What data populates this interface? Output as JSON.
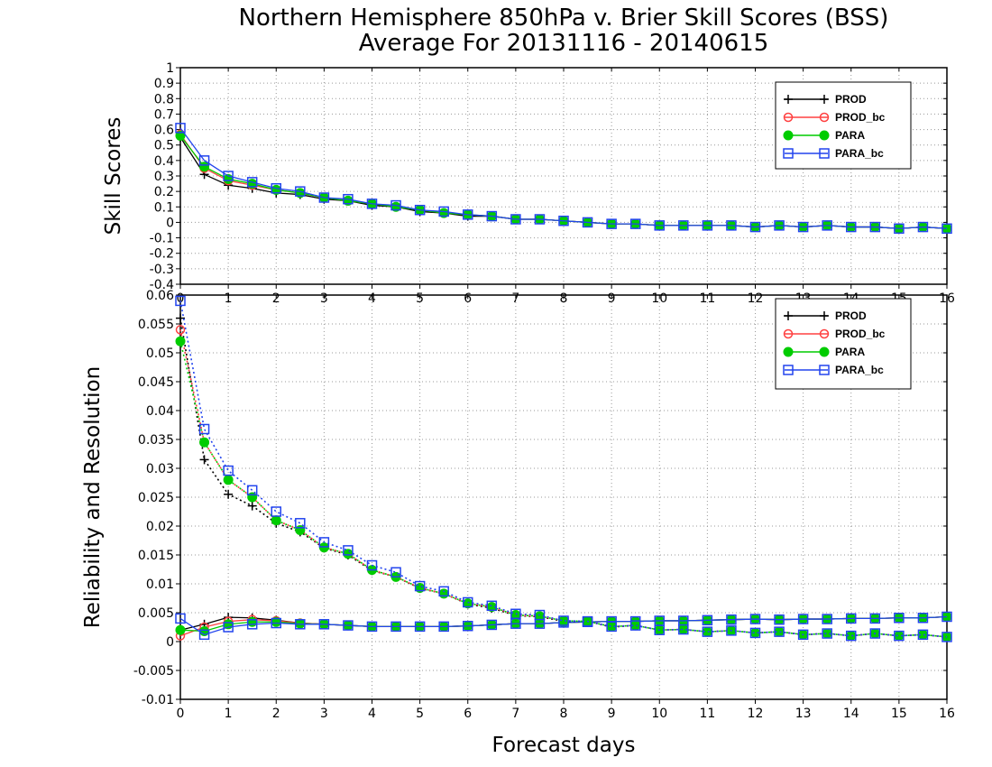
{
  "title_line1": "Northern Hemisphere 850hPa v. Brier Skill Scores (BSS)",
  "title_line2": "Average For 20131116 - 20140615",
  "chart_data": [
    {
      "type": "line",
      "ylabel": "Skill Scores",
      "xlabel": "",
      "xlim": [
        0,
        16
      ],
      "ylim": [
        -0.4,
        1
      ],
      "xticks": [
        "0",
        "1",
        "2",
        "3",
        "4",
        "5",
        "6",
        "7",
        "8",
        "9",
        "10",
        "11",
        "12",
        "13",
        "14",
        "15",
        "16"
      ],
      "yticks": [
        "-0.4",
        "-0.3",
        "-0.2",
        "-0.1",
        "0",
        "0.1",
        "0.2",
        "0.3",
        "0.4",
        "0.5",
        "0.6",
        "0.7",
        "0.8",
        "0.9",
        "1"
      ],
      "grid": true,
      "legend_position": "top-right",
      "x": [
        0,
        0.5,
        1,
        1.5,
        2,
        2.5,
        3,
        3.5,
        4,
        4.5,
        5,
        5.5,
        6,
        6.5,
        7,
        7.5,
        8,
        8.5,
        9,
        9.5,
        10,
        10.5,
        11,
        11.5,
        12,
        12.5,
        13,
        13.5,
        14,
        14.5,
        15,
        15.5,
        16
      ],
      "series": [
        {
          "name": "PROD",
          "color": "#000000",
          "marker": "plus",
          "values": [
            0.55,
            0.31,
            0.24,
            0.22,
            0.19,
            0.18,
            0.15,
            0.14,
            0.11,
            0.1,
            0.07,
            0.06,
            0.04,
            0.04,
            0.02,
            0.02,
            0.01,
            0.0,
            -0.01,
            -0.01,
            -0.02,
            -0.02,
            -0.02,
            -0.02,
            -0.03,
            -0.02,
            -0.03,
            -0.02,
            -0.03,
            -0.03,
            -0.04,
            -0.03,
            -0.04
          ]
        },
        {
          "name": "PROD_bc",
          "color": "#ff4040",
          "marker": "circle",
          "values": [
            0.57,
            0.35,
            0.27,
            0.24,
            0.21,
            0.19,
            0.16,
            0.14,
            0.12,
            0.1,
            0.08,
            0.06,
            0.05,
            0.04,
            0.02,
            0.02,
            0.01,
            0.0,
            -0.01,
            -0.01,
            -0.02,
            -0.02,
            -0.02,
            -0.02,
            -0.03,
            -0.02,
            -0.03,
            -0.02,
            -0.03,
            -0.03,
            -0.04,
            -0.03,
            -0.04
          ]
        },
        {
          "name": "PARA",
          "color": "#00cc00",
          "marker": "dot",
          "values": [
            0.56,
            0.36,
            0.28,
            0.25,
            0.21,
            0.19,
            0.16,
            0.14,
            0.12,
            0.1,
            0.08,
            0.06,
            0.05,
            0.04,
            0.02,
            0.02,
            0.01,
            0.0,
            -0.01,
            -0.01,
            -0.02,
            -0.02,
            -0.02,
            -0.02,
            -0.03,
            -0.02,
            -0.03,
            -0.02,
            -0.03,
            -0.03,
            -0.04,
            -0.03,
            -0.04
          ]
        },
        {
          "name": "PARA_bc",
          "color": "#2244ee",
          "marker": "square",
          "values": [
            0.61,
            0.4,
            0.3,
            0.26,
            0.22,
            0.2,
            0.16,
            0.15,
            0.12,
            0.11,
            0.08,
            0.07,
            0.05,
            0.04,
            0.02,
            0.02,
            0.01,
            0.0,
            -0.01,
            -0.01,
            -0.02,
            -0.02,
            -0.02,
            -0.02,
            -0.03,
            -0.02,
            -0.03,
            -0.02,
            -0.03,
            -0.03,
            -0.04,
            -0.03,
            -0.04
          ]
        }
      ]
    },
    {
      "type": "line",
      "ylabel": "Reliability and Resolution",
      "xlabel": "Forecast days",
      "xlim": [
        0,
        16
      ],
      "ylim": [
        -0.01,
        0.06
      ],
      "xticks": [
        "0",
        "1",
        "2",
        "3",
        "4",
        "5",
        "6",
        "7",
        "8",
        "9",
        "10",
        "11",
        "12",
        "13",
        "14",
        "15",
        "16"
      ],
      "yticks": [
        "-0.01",
        "-0.005",
        "0",
        "0.005",
        "0.01",
        "0.015",
        "0.02",
        "0.025",
        "0.03",
        "0.035",
        "0.04",
        "0.045",
        "0.05",
        "0.055",
        "0.06"
      ],
      "grid": true,
      "legend_position": "top-right",
      "x": [
        0,
        0.5,
        1,
        1.5,
        2,
        2.5,
        3,
        3.5,
        4,
        4.5,
        5,
        5.5,
        6,
        6.5,
        7,
        7.5,
        8,
        8.5,
        9,
        9.5,
        10,
        10.5,
        11,
        11.5,
        12,
        12.5,
        13,
        13.5,
        14,
        14.5,
        15,
        15.5,
        16
      ],
      "series": [
        {
          "name": "PROD",
          "color": "#000000",
          "marker": "plus",
          "component": "reliability",
          "values": [
            0.002,
            0.003,
            0.0042,
            0.0041,
            0.0037,
            0.0032,
            0.003,
            0.0028,
            0.0026,
            0.0026,
            0.0026,
            0.0026,
            0.0027,
            0.0029,
            0.0031,
            0.0031,
            0.0033,
            0.0034,
            0.0035,
            0.0035,
            0.0036,
            0.0036,
            0.0037,
            0.0038,
            0.0039,
            0.0038,
            0.0039,
            0.0039,
            0.004,
            0.004,
            0.0041,
            0.0041,
            0.0043
          ]
        },
        {
          "name": "PROD_bc",
          "color": "#ff4040",
          "marker": "circle",
          "component": "reliability",
          "values": [
            0.001,
            0.0025,
            0.0035,
            0.0038,
            0.0036,
            0.0032,
            0.003,
            0.0028,
            0.0026,
            0.0026,
            0.0026,
            0.0026,
            0.0027,
            0.0029,
            0.0031,
            0.0031,
            0.0033,
            0.0034,
            0.0035,
            0.0035,
            0.0036,
            0.0036,
            0.0037,
            0.0038,
            0.0039,
            0.0038,
            0.0039,
            0.0039,
            0.004,
            0.004,
            0.0041,
            0.0041,
            0.0043
          ]
        },
        {
          "name": "PARA",
          "color": "#00cc00",
          "marker": "dot",
          "component": "reliability",
          "values": [
            0.002,
            0.0018,
            0.003,
            0.0034,
            0.0034,
            0.0031,
            0.003,
            0.0028,
            0.0026,
            0.0026,
            0.0026,
            0.0026,
            0.0027,
            0.0029,
            0.0031,
            0.0031,
            0.0033,
            0.0034,
            0.0035,
            0.0035,
            0.0036,
            0.0036,
            0.0037,
            0.0038,
            0.0039,
            0.0038,
            0.0039,
            0.0039,
            0.004,
            0.004,
            0.0041,
            0.0041,
            0.0043
          ]
        },
        {
          "name": "PARA_bc",
          "color": "#2244ee",
          "marker": "square",
          "component": "reliability",
          "values": [
            0.004,
            0.0012,
            0.0025,
            0.003,
            0.0032,
            0.003,
            0.003,
            0.0028,
            0.0026,
            0.0026,
            0.0026,
            0.0026,
            0.0027,
            0.0029,
            0.0031,
            0.0031,
            0.0033,
            0.0034,
            0.0035,
            0.0035,
            0.0036,
            0.0036,
            0.0037,
            0.0038,
            0.0039,
            0.0038,
            0.0039,
            0.0039,
            0.004,
            0.004,
            0.0041,
            0.0041,
            0.0043
          ]
        },
        {
          "name": "PROD",
          "color": "#000000",
          "marker": "plus",
          "component": "resolution",
          "values": [
            0.056,
            0.0315,
            0.0255,
            0.0235,
            0.0205,
            0.019,
            0.0162,
            0.015,
            0.0123,
            0.0112,
            0.0092,
            0.0083,
            0.0065,
            0.0058,
            0.0045,
            0.0043,
            0.0035,
            0.0035,
            0.0025,
            0.0028,
            0.002,
            0.0021,
            0.0017,
            0.0019,
            0.0015,
            0.0017,
            0.0012,
            0.0014,
            0.001,
            0.0014,
            0.001,
            0.0012,
            0.0008
          ]
        },
        {
          "name": "PROD_bc",
          "color": "#ff4040",
          "marker": "circle",
          "component": "resolution",
          "values": [
            0.054,
            0.0345,
            0.028,
            0.025,
            0.021,
            0.0193,
            0.0163,
            0.0152,
            0.0124,
            0.0112,
            0.0093,
            0.0083,
            0.0066,
            0.006,
            0.0046,
            0.0044,
            0.0036,
            0.0035,
            0.0026,
            0.0028,
            0.002,
            0.0021,
            0.0017,
            0.0019,
            0.0015,
            0.0017,
            0.0012,
            0.0014,
            0.001,
            0.0014,
            0.001,
            0.0012,
            0.0008
          ]
        },
        {
          "name": "PARA",
          "color": "#00cc00",
          "marker": "dot",
          "component": "resolution",
          "values": [
            0.052,
            0.0345,
            0.028,
            0.025,
            0.021,
            0.0193,
            0.0163,
            0.0152,
            0.0124,
            0.0112,
            0.0093,
            0.0083,
            0.0066,
            0.006,
            0.0046,
            0.0044,
            0.0036,
            0.0035,
            0.0026,
            0.0028,
            0.002,
            0.0021,
            0.0017,
            0.0019,
            0.0015,
            0.0017,
            0.0012,
            0.0014,
            0.001,
            0.0014,
            0.001,
            0.0012,
            0.0008
          ]
        },
        {
          "name": "PARA_bc",
          "color": "#2244ee",
          "marker": "square",
          "component": "resolution",
          "values": [
            0.059,
            0.0368,
            0.0296,
            0.0262,
            0.0225,
            0.0205,
            0.0172,
            0.0158,
            0.0132,
            0.012,
            0.0096,
            0.0087,
            0.0068,
            0.0062,
            0.0048,
            0.0046,
            0.0036,
            0.0035,
            0.0026,
            0.0028,
            0.002,
            0.0021,
            0.0017,
            0.0019,
            0.0015,
            0.0017,
            0.0012,
            0.0014,
            0.001,
            0.0014,
            0.001,
            0.0012,
            0.0008
          ]
        }
      ]
    }
  ]
}
